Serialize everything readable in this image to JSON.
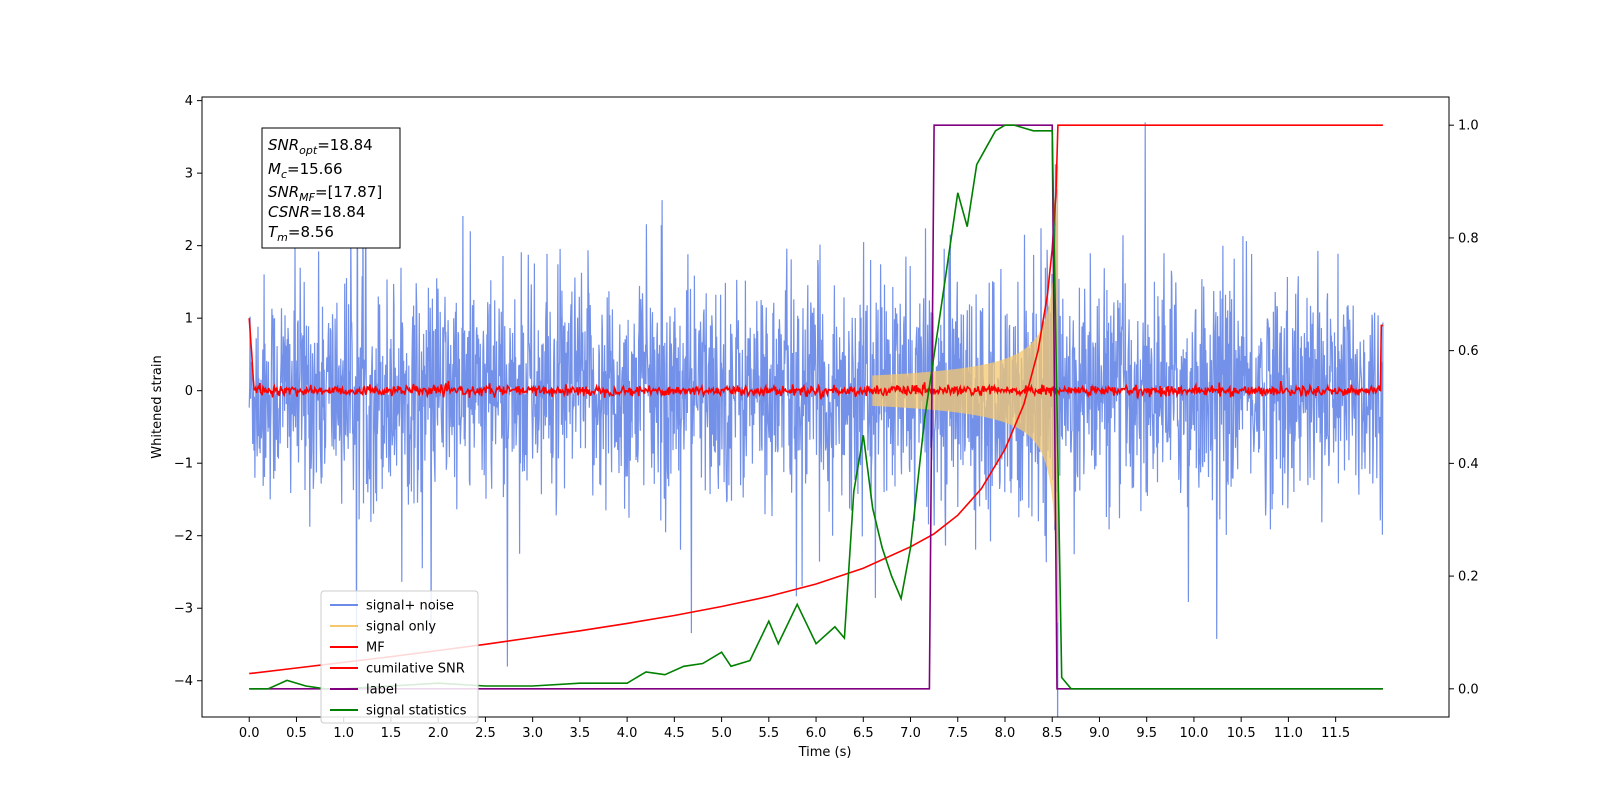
{
  "chart_data": {
    "type": "line",
    "xlabel": "Time (s)",
    "ylabel": "Whitened strain",
    "xlim": [
      -0.5,
      12.7
    ],
    "ylim_left": [
      -4.5,
      4.05
    ],
    "ylim_right": [
      -0.05,
      1.05
    ],
    "x_ticks": [
      "0.0",
      "0.5",
      "1.0",
      "1.5",
      "2.0",
      "2.5",
      "3.0",
      "3.5",
      "4.0",
      "4.5",
      "5.0",
      "5.5",
      "6.0",
      "6.5",
      "7.0",
      "7.5",
      "8.0",
      "8.5",
      "9.0",
      "9.5",
      "10.0",
      "10.5",
      "11.0",
      "11.5"
    ],
    "y_ticks_left": [
      "4",
      "3",
      "2",
      "1",
      "0",
      "−1",
      "−2",
      "−3",
      "−4"
    ],
    "y_ticks_right": [
      "1.0",
      "0.8",
      "0.6",
      "0.4",
      "0.2",
      "0.0"
    ],
    "grid": false,
    "legend_position": "lower-left",
    "annotations": {
      "snr_opt": {
        "name": "SNR",
        "sub": "opt",
        "value": "=18.84"
      },
      "mc": {
        "name": "M",
        "sub": "c",
        "value": "=15.66"
      },
      "snr_mf": {
        "name": "SNR",
        "sub": "MF",
        "value": "=[17.87]"
      },
      "csnr": {
        "name": "CSNR",
        "sub": "",
        "value": "=18.84"
      },
      "tm": {
        "name": "T",
        "sub": "m",
        "value": "=8.56"
      }
    },
    "series": [
      {
        "name": "signal+ noise",
        "color": "#6b8be8",
        "axis": "left",
        "style": "noise",
        "noise_std": 1.0,
        "x_range": [
          0.0,
          12.0
        ]
      },
      {
        "name": "signal only",
        "color": "#f5c86e",
        "axis": "left",
        "style": "chirp",
        "coalescence_time": 8.56,
        "peak_amplitude": 3.3
      },
      {
        "name": "MF",
        "color": "#ff0000",
        "axis": "left",
        "style": "mf",
        "baseline": 0.0,
        "edge_value": 1.0
      },
      {
        "name": "cumilative SNR",
        "color": "#ff0000",
        "axis": "right",
        "x": [
          0.0,
          0.5,
          1.0,
          1.5,
          2.0,
          2.5,
          3.0,
          3.5,
          4.0,
          4.5,
          5.0,
          5.5,
          6.0,
          6.5,
          7.0,
          7.25,
          7.5,
          7.75,
          8.0,
          8.2,
          8.35,
          8.45,
          8.5,
          8.54,
          8.56,
          9.0,
          10.0,
          11.0,
          12.0
        ],
        "y": [
          0.027,
          0.037,
          0.047,
          0.057,
          0.068,
          0.079,
          0.091,
          0.103,
          0.116,
          0.13,
          0.146,
          0.164,
          0.186,
          0.214,
          0.252,
          0.275,
          0.308,
          0.355,
          0.425,
          0.505,
          0.6,
          0.7,
          0.78,
          0.88,
          1.0,
          1.0,
          1.0,
          1.0,
          1.0
        ]
      },
      {
        "name": "label",
        "color": "#800080",
        "axis": "right",
        "x": [
          0.0,
          7.2,
          7.25,
          8.5,
          8.55,
          12.0
        ],
        "y": [
          0.0,
          0.0,
          1.0,
          1.0,
          0.0,
          0.0
        ]
      },
      {
        "name": "signal statistics",
        "color": "#008000",
        "axis": "right",
        "x": [
          0.0,
          0.2,
          0.4,
          0.6,
          0.8,
          1.0,
          1.5,
          2.0,
          2.5,
          3.0,
          3.5,
          4.0,
          4.2,
          4.4,
          4.6,
          4.8,
          5.0,
          5.1,
          5.3,
          5.5,
          5.6,
          5.8,
          6.0,
          6.2,
          6.3,
          6.4,
          6.5,
          6.6,
          6.7,
          6.8,
          6.9,
          7.0,
          7.15,
          7.3,
          7.5,
          7.6,
          7.7,
          7.8,
          7.9,
          8.0,
          8.1,
          8.3,
          8.5,
          8.6,
          8.7,
          9.0,
          10.0,
          11.0,
          12.0
        ],
        "y": [
          0.0,
          0.0,
          0.015,
          0.005,
          0.0,
          0.0,
          0.005,
          0.01,
          0.005,
          0.005,
          0.01,
          0.01,
          0.03,
          0.025,
          0.04,
          0.045,
          0.065,
          0.04,
          0.05,
          0.12,
          0.08,
          0.15,
          0.08,
          0.11,
          0.09,
          0.35,
          0.45,
          0.32,
          0.25,
          0.2,
          0.16,
          0.25,
          0.48,
          0.65,
          0.88,
          0.82,
          0.93,
          0.96,
          0.99,
          1.0,
          1.0,
          0.99,
          0.99,
          0.02,
          0.0,
          0.0,
          0.0,
          0.0,
          0.0
        ]
      }
    ]
  }
}
